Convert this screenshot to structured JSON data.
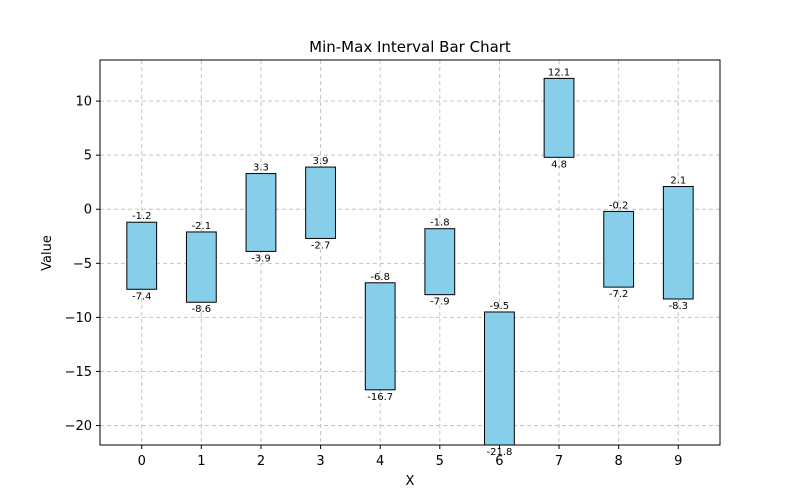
{
  "chart_data": {
    "type": "bar",
    "variant": "floating-interval",
    "title": "Min-Max Interval Bar Chart",
    "xlabel": "X",
    "ylabel": "Value",
    "categories": [
      "0",
      "1",
      "2",
      "3",
      "4",
      "5",
      "6",
      "7",
      "8",
      "9"
    ],
    "min_values": [
      -7.4,
      -8.6,
      -3.9,
      -2.7,
      -16.7,
      -7.9,
      -21.8,
      4.8,
      -7.2,
      -8.3
    ],
    "max_values": [
      -1.2,
      -2.1,
      3.3,
      3.9,
      -6.8,
      -1.8,
      -9.5,
      12.1,
      -0.2,
      2.1
    ],
    "min_labels": [
      "-7.4",
      "-8.6",
      "-3.9",
      "-2.7",
      "-16.7",
      "-7.9",
      "-21.8",
      "4.8",
      "-7.2",
      "-8.3"
    ],
    "max_labels": [
      "-1.2",
      "-2.1",
      "3.3",
      "3.9",
      "-6.8",
      "-1.8",
      "-9.5",
      "12.1",
      "-0.2",
      "2.1"
    ],
    "xlim": [
      -0.7,
      9.7
    ],
    "ylim": [
      -21.8,
      13.8
    ],
    "yticks": [
      -20,
      -15,
      -10,
      -5,
      0,
      5,
      10
    ],
    "ytick_labels": [
      "−20",
      "−15",
      "−10",
      "−5",
      "0",
      "5",
      "10"
    ],
    "bar_color": "#87ceeb",
    "edge_color": "#000000",
    "grid": true,
    "legend": "none"
  }
}
